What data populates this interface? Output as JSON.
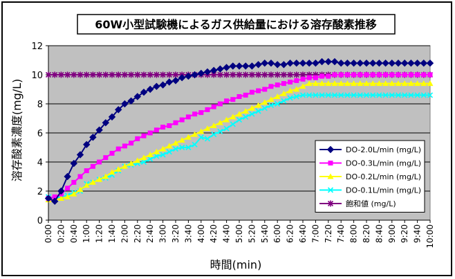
{
  "chart_data": {
    "type": "line",
    "title": "60W小型試験機によるガス供給量における溶存酸素推移",
    "xlabel": "時間(min)",
    "ylabel": "溶存酸素濃度(mg/L)",
    "ylim": [
      0,
      12
    ],
    "yticks": [
      0,
      2,
      4,
      6,
      8,
      10,
      12
    ],
    "grid": true,
    "plot_background": "#c0c0c0",
    "legend_position": "right",
    "x": [
      "0:00",
      "0:10",
      "0:20",
      "0:30",
      "0:40",
      "0:50",
      "1:00",
      "1:10",
      "1:20",
      "1:30",
      "1:40",
      "1:50",
      "2:00",
      "2:10",
      "2:20",
      "2:30",
      "2:40",
      "2:50",
      "3:00",
      "3:10",
      "3:20",
      "3:30",
      "3:40",
      "3:50",
      "4:00",
      "4:10",
      "4:20",
      "4:30",
      "4:40",
      "4:50",
      "5:00",
      "5:10",
      "5:20",
      "5:30",
      "5:40",
      "5:50",
      "6:00",
      "6:10",
      "6:20",
      "6:30",
      "6:40",
      "6:50",
      "7:00",
      "7:10",
      "7:20",
      "7:30",
      "7:40",
      "7:50",
      "8:00",
      "8:10",
      "8:20",
      "8:30",
      "8:40",
      "8:50",
      "9:00",
      "9:10",
      "9:20",
      "9:30",
      "9:40",
      "9:50",
      "10:00"
    ],
    "xtick_labels": [
      "0:00",
      "0:20",
      "0:40",
      "1:00",
      "1:20",
      "1:40",
      "2:00",
      "2:20",
      "2:40",
      "3:00",
      "3:20",
      "3:40",
      "4:00",
      "4:20",
      "4:40",
      "5:00",
      "5:20",
      "5:40",
      "6:00",
      "6:20",
      "6:40",
      "7:00",
      "7:20",
      "7:40",
      "8:00",
      "8:20",
      "8:40",
      "9:00",
      "9:20",
      "9:40",
      "10:00"
    ],
    "series": [
      {
        "name": "DO-2.0L/min (mg/L)",
        "color": "#000080",
        "marker": "diamond",
        "values": [
          1.5,
          1.3,
          2.0,
          3.0,
          3.9,
          4.5,
          5.2,
          5.7,
          6.2,
          6.7,
          7.1,
          7.6,
          8.0,
          8.2,
          8.5,
          8.8,
          9.0,
          9.2,
          9.3,
          9.5,
          9.6,
          9.8,
          9.9,
          10.0,
          10.1,
          10.2,
          10.3,
          10.4,
          10.5,
          10.6,
          10.6,
          10.6,
          10.6,
          10.7,
          10.8,
          10.8,
          10.7,
          10.7,
          10.8,
          10.8,
          10.8,
          10.8,
          10.8,
          10.9,
          10.9,
          10.9,
          10.8,
          10.8,
          10.8,
          10.8,
          10.8,
          10.8,
          10.8,
          10.8,
          10.8,
          10.8,
          10.8,
          10.8,
          10.8,
          10.8,
          10.8
        ]
      },
      {
        "name": "DO-0.3L/min (mg/L)",
        "color": "#ff00ff",
        "marker": "square",
        "values": [
          1.5,
          1.6,
          1.8,
          2.2,
          2.6,
          3.0,
          3.4,
          3.7,
          4.0,
          4.3,
          4.6,
          4.9,
          5.1,
          5.3,
          5.6,
          5.8,
          6.0,
          6.2,
          6.4,
          6.5,
          6.7,
          6.9,
          7.1,
          7.3,
          7.4,
          7.6,
          7.8,
          8.0,
          8.2,
          8.3,
          8.5,
          8.6,
          8.8,
          8.9,
          9.0,
          9.2,
          9.3,
          9.4,
          9.5,
          9.6,
          9.7,
          9.8,
          9.8,
          9.9,
          9.9,
          10.0,
          10.0,
          10.0,
          10.0,
          10.0,
          10.0,
          10.0,
          10.0,
          10.0,
          10.0,
          10.0,
          10.0,
          10.0,
          10.0,
          10.0,
          10.0
        ]
      },
      {
        "name": "DO-0.2L/min (mg/L)",
        "color": "#ffff00",
        "marker": "triangle",
        "values": [
          1.4,
          1.4,
          1.5,
          1.6,
          1.8,
          2.1,
          2.4,
          2.6,
          2.8,
          3.0,
          3.3,
          3.5,
          3.7,
          3.9,
          4.1,
          4.3,
          4.5,
          4.7,
          4.9,
          5.1,
          5.3,
          5.5,
          5.7,
          5.9,
          6.1,
          6.3,
          6.5,
          6.7,
          6.9,
          7.1,
          7.3,
          7.5,
          7.7,
          7.9,
          8.1,
          8.3,
          8.5,
          8.7,
          8.9,
          9.0,
          9.2,
          9.4,
          9.4,
          9.4,
          9.4,
          9.4,
          9.4,
          9.4,
          9.4,
          9.4,
          9.4,
          9.4,
          9.4,
          9.4,
          9.4,
          9.4,
          9.4,
          9.4,
          9.4,
          9.4,
          9.4
        ]
      },
      {
        "name": "DO-0.1L/min (mg/L)",
        "color": "#00ffff",
        "marker": "x",
        "values": [
          1.6,
          1.5,
          1.6,
          1.7,
          1.9,
          2.0,
          2.5,
          2.6,
          2.8,
          2.9,
          3.1,
          3.4,
          3.7,
          3.8,
          3.9,
          4.0,
          4.2,
          4.4,
          4.5,
          4.7,
          4.9,
          5.0,
          5.0,
          5.2,
          5.7,
          5.6,
          5.9,
          6.1,
          6.3,
          6.6,
          6.9,
          7.1,
          7.3,
          7.5,
          7.7,
          7.9,
          8.0,
          8.2,
          8.4,
          8.5,
          8.6,
          8.6,
          8.6,
          8.6,
          8.6,
          8.6,
          8.6,
          8.6,
          8.6,
          8.6,
          8.6,
          8.6,
          8.6,
          8.6,
          8.6,
          8.6,
          8.6,
          8.6,
          8.6,
          8.6,
          8.6
        ]
      },
      {
        "name": "飽和値 (mg/L)",
        "color": "#800080",
        "marker": "star",
        "values": [
          10.0,
          10.0,
          10.0,
          10.0,
          10.0,
          10.0,
          10.0,
          10.0,
          10.0,
          10.0,
          10.0,
          10.0,
          10.0,
          10.0,
          10.0,
          10.0,
          10.0,
          10.0,
          10.0,
          10.0,
          10.0,
          10.0,
          10.0,
          10.0,
          10.0,
          10.0,
          10.0,
          10.0,
          10.0,
          10.0,
          10.0,
          10.0,
          10.0,
          10.0,
          10.0,
          10.0,
          10.0,
          10.0,
          10.0,
          10.0,
          10.0,
          10.0,
          10.0,
          10.0,
          10.0,
          10.0,
          10.0,
          10.0,
          10.0,
          10.0,
          10.0,
          10.0,
          10.0,
          10.0,
          10.0,
          10.0,
          10.0,
          10.0,
          10.0,
          10.0,
          10.0
        ]
      }
    ]
  }
}
